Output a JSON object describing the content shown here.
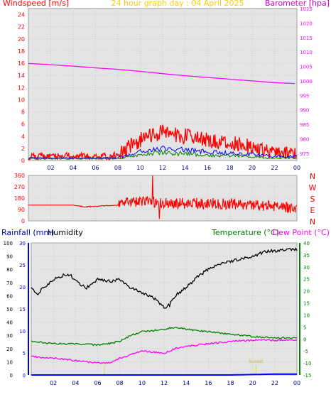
{
  "chart_data": [
    {
      "type": "line",
      "title": "24 hour graph day : 04 April 2025",
      "left_axis_label": "Windspeed [m/s]",
      "right_axis_label": "Barometer [hpa]",
      "x_ticks": [
        "02",
        "04",
        "06",
        "08",
        "10",
        "12",
        "14",
        "16",
        "18",
        "20",
        "22",
        "00"
      ],
      "x_range_hours": [
        0,
        24
      ],
      "left_ylim": [
        0,
        25
      ],
      "left_ticks": [
        0,
        2,
        4,
        6,
        8,
        10,
        12,
        14,
        16,
        18,
        20,
        22,
        24
      ],
      "right_ylim": [
        972.5,
        1025
      ],
      "right_ticks": [
        975,
        980,
        985,
        990,
        995,
        1000,
        1005,
        1010,
        1015,
        1020,
        1025
      ],
      "grid": true,
      "series": [
        {
          "axis": "right",
          "color": "#ff00ff",
          "x": [
            0,
            2,
            4,
            6,
            8,
            10,
            12,
            14,
            16,
            18,
            20,
            22,
            23.8
          ],
          "values": [
            1006.0,
            1005.6,
            1005.1,
            1004.5,
            1004.0,
            1003.3,
            1002.5,
            1001.8,
            1001.2,
            1000.6,
            1000.0,
            999.4,
            999.1
          ]
        },
        {
          "color": "#ff0000",
          "x": [
            0,
            2,
            4,
            6,
            8,
            9,
            10,
            11,
            12,
            13,
            14,
            15,
            16,
            17,
            18,
            19,
            20,
            21,
            22,
            23,
            24
          ],
          "values": [
            0.6,
            0.7,
            0.7,
            0.6,
            0.8,
            2.3,
            3.4,
            4.2,
            4.6,
            4.3,
            4.0,
            3.6,
            3.3,
            3.0,
            2.9,
            2.6,
            2.3,
            1.6,
            1.2,
            1.2,
            1.1
          ]
        },
        {
          "color": "#0000ff",
          "x": [
            0,
            2,
            4,
            6,
            8,
            9,
            10,
            11,
            12,
            13,
            14,
            15,
            16,
            17,
            18,
            19,
            20,
            21,
            22,
            23,
            24
          ],
          "values": [
            0.4,
            0.4,
            0.4,
            0.4,
            0.5,
            0.9,
            1.4,
            1.7,
            2.0,
            1.9,
            1.7,
            1.6,
            1.4,
            1.3,
            1.2,
            1.1,
            1.0,
            0.8,
            0.7,
            0.7,
            0.7
          ]
        },
        {
          "color": "#008000",
          "x": [
            0,
            2,
            4,
            6,
            8,
            9,
            10,
            11,
            12,
            13,
            14,
            15,
            16,
            17,
            18,
            19,
            20,
            21,
            22,
            23,
            24
          ],
          "values": [
            0.3,
            0.3,
            0.3,
            0.3,
            0.3,
            0.6,
            1.0,
            1.2,
            1.3,
            1.2,
            1.1,
            1.0,
            0.9,
            0.8,
            0.8,
            0.7,
            0.6,
            0.5,
            0.4,
            0.4,
            0.4
          ]
        }
      ]
    },
    {
      "type": "line",
      "direction_labels": [
        "N",
        "W",
        "S",
        "E",
        "N"
      ],
      "x_range_hours": [
        0,
        24
      ],
      "ylim": [
        0,
        360
      ],
      "y_ticks": [
        0,
        90,
        180,
        270,
        360
      ],
      "grid": true,
      "series": [
        {
          "color": "#ff0000",
          "x": [
            0,
            2,
            4,
            5,
            6,
            7,
            8,
            9,
            10,
            11,
            12,
            14,
            16,
            18,
            20,
            22,
            24
          ],
          "values": [
            125,
            125,
            125,
            110,
            115,
            120,
            125,
            150,
            150,
            145,
            135,
            140,
            140,
            135,
            130,
            115,
            95
          ]
        }
      ]
    },
    {
      "type": "line",
      "left_axis_labels": [
        "Rainfall (mm)",
        "Humidity"
      ],
      "right_axis_labels": [
        "Temperature (°C)",
        "Dew Point (°C)"
      ],
      "x_ticks": [
        "02",
        "04",
        "06",
        "08",
        "10",
        "12",
        "14",
        "16",
        "18",
        "20",
        "22",
        "00"
      ],
      "x_range_hours": [
        0,
        24
      ],
      "humidity_ticks": [
        0,
        10,
        20,
        30,
        40,
        50,
        60,
        70,
        80,
        90,
        100
      ],
      "rain_ticks": [
        0,
        5,
        10,
        15,
        20,
        25,
        30
      ],
      "temperature_ticks": [
        -15,
        -10,
        -5,
        0,
        5,
        10,
        15,
        20,
        25,
        30,
        35,
        40
      ],
      "humidity_ylim": [
        0,
        100
      ],
      "rain_ylim": [
        0,
        30
      ],
      "temperature_ylim": [
        -15,
        40
      ],
      "grid": true,
      "annotations": [
        "Sunset"
      ],
      "series": [
        {
          "axis": "humidity",
          "color": "#000000",
          "x": [
            0,
            0.5,
            1,
            1.5,
            2,
            3,
            3.5,
            4,
            5,
            6,
            7,
            8,
            9,
            10,
            11,
            12,
            12.5,
            13,
            14,
            15,
            16,
            17,
            18,
            19,
            20,
            21,
            22,
            23,
            24
          ],
          "values": [
            67,
            61,
            65,
            69,
            72,
            76,
            76,
            71,
            66,
            72,
            71,
            72,
            66,
            62,
            59,
            51,
            53,
            60,
            66,
            74,
            80,
            84,
            86,
            88,
            90,
            93,
            94,
            95,
            95
          ]
        },
        {
          "axis": "temperature",
          "color": "#008000",
          "x": [
            0,
            1,
            2,
            4,
            6,
            7,
            8,
            9,
            10,
            12,
            13,
            14,
            16,
            18,
            20,
            22,
            24
          ],
          "values": [
            -1,
            -1.5,
            -2,
            -2,
            -2.5,
            -2,
            -1,
            1.5,
            3,
            4,
            5,
            4,
            3,
            2,
            1,
            0.5,
            0.5
          ]
        },
        {
          "axis": "temperature",
          "color": "#ff00ff",
          "x": [
            0,
            1,
            2,
            4,
            6,
            7,
            8,
            9,
            10,
            12,
            13,
            14,
            16,
            18,
            20,
            22,
            24
          ],
          "values": [
            -7,
            -8,
            -8,
            -9,
            -10,
            -10,
            -8,
            -6.5,
            -5,
            -6,
            -4,
            -3,
            -2,
            -1,
            -0.5,
            -0.5,
            -0.5
          ]
        },
        {
          "axis": "rain",
          "color": "#0000ff",
          "x": [
            0,
            6,
            12,
            18,
            22,
            24
          ],
          "values": [
            0,
            0,
            0,
            0,
            0.2,
            0.2
          ]
        }
      ]
    }
  ]
}
